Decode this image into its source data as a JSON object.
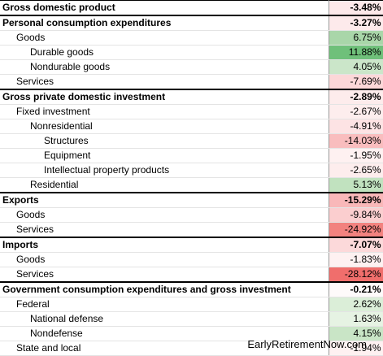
{
  "brand": "EarlyRetirementNow.com",
  "rows": [
    {
      "label": "Gross domestic product",
      "value": "-3.48%",
      "level": 0,
      "bold": true,
      "color": "#fde9ea"
    },
    {
      "label": "Personal consumption expenditures",
      "value": "-3.27%",
      "level": 0,
      "bold": true,
      "color": "#fdeaeb"
    },
    {
      "label": "Goods",
      "value": "6.75%",
      "level": 1,
      "bold": false,
      "color": "#a9d6a9"
    },
    {
      "label": "Durable goods",
      "value": "11.88%",
      "level": 2,
      "bold": false,
      "color": "#6fc07a"
    },
    {
      "label": "Nondurable goods",
      "value": "4.05%",
      "level": 2,
      "bold": false,
      "color": "#cbe6c9"
    },
    {
      "label": "Services",
      "value": "-7.69%",
      "level": 1,
      "bold": false,
      "color": "#fcd7d8"
    },
    {
      "label": "Gross private domestic investment",
      "value": "-2.89%",
      "level": 0,
      "bold": true,
      "color": "#fdecec"
    },
    {
      "label": "Fixed investment",
      "value": "-2.67%",
      "level": 1,
      "bold": false,
      "color": "#fdeded"
    },
    {
      "label": "Nonresidential",
      "value": "-4.91%",
      "level": 2,
      "bold": false,
      "color": "#fde3e4"
    },
    {
      "label": "Structures",
      "value": "-14.03%",
      "level": 3,
      "bold": false,
      "color": "#f9bdbe"
    },
    {
      "label": "Equipment",
      "value": "-1.95%",
      "level": 3,
      "bold": false,
      "color": "#fef1f1"
    },
    {
      "label": "Intellectual property products",
      "value": "-2.65%",
      "level": 3,
      "bold": false,
      "color": "#fdeded"
    },
    {
      "label": "Residential",
      "value": "5.13%",
      "level": 2,
      "bold": false,
      "color": "#c1e2bf"
    },
    {
      "label": "Exports",
      "value": "-15.29%",
      "level": 0,
      "bold": true,
      "color": "#f9b8b9"
    },
    {
      "label": "Goods",
      "value": "-9.84%",
      "level": 1,
      "bold": false,
      "color": "#fbcecf"
    },
    {
      "label": "Services",
      "value": "-24.92%",
      "level": 1,
      "bold": false,
      "color": "#f2827f"
    },
    {
      "label": "Imports",
      "value": "-7.07%",
      "level": 0,
      "bold": true,
      "color": "#fcd9da"
    },
    {
      "label": "Goods",
      "value": "-1.83%",
      "level": 1,
      "bold": false,
      "color": "#fef1f1"
    },
    {
      "label": "Services",
      "value": "-28.12%",
      "level": 1,
      "bold": false,
      "color": "#f06e6c"
    },
    {
      "label": "Government consumption expenditures and gross investment",
      "value": "-0.21%",
      "level": 0,
      "bold": true,
      "color": "#fefafa"
    },
    {
      "label": "Federal",
      "value": "2.62%",
      "level": 1,
      "bold": false,
      "color": "#dbeed8"
    },
    {
      "label": "National defense",
      "value": "1.63%",
      "level": 2,
      "bold": false,
      "color": "#e6f3e3"
    },
    {
      "label": "Nondefense",
      "value": "4.15%",
      "level": 2,
      "bold": false,
      "color": "#c9e5c6"
    },
    {
      "label": "State and local",
      "value": "-1.94%",
      "level": 1,
      "bold": false,
      "color": "#fef1f1"
    }
  ]
}
